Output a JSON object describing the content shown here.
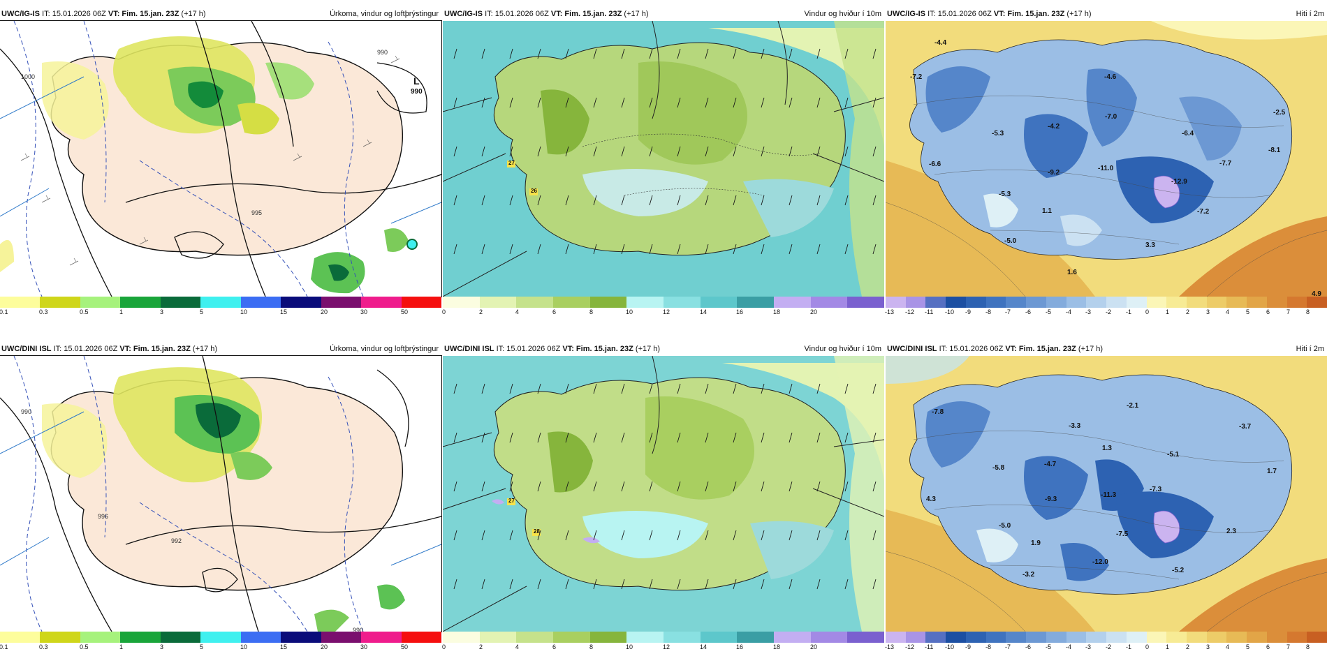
{
  "rows": [
    {
      "model": "UWC/IG-IS",
      "panels": [
        {
          "kind": "precip",
          "title": "Úrkoma, vindur og loftþrýstingur",
          "labels": [
            {
              "t": "L"
            },
            {
              "t": "990"
            },
            {
              "t": "1000"
            },
            {
              "t": "990"
            },
            {
              "t": "995"
            }
          ]
        },
        {
          "kind": "wind",
          "title": "Vindur og hviður í 10m",
          "labels": [
            {
              "t": "27"
            },
            {
              "t": "26"
            }
          ]
        },
        {
          "kind": "temp",
          "title": "Hiti í 2m",
          "labels": [
            {
              "t": "-4.4"
            },
            {
              "t": "-7.2"
            },
            {
              "t": "-4.6"
            },
            {
              "t": "-7.0"
            },
            {
              "t": "-4.2"
            },
            {
              "t": "-5.3"
            },
            {
              "t": "-6.4"
            },
            {
              "t": "-2.5"
            },
            {
              "t": "-8.1"
            },
            {
              "t": "-6.6"
            },
            {
              "t": "-9.2"
            },
            {
              "t": "-11.0"
            },
            {
              "t": "-12.9"
            },
            {
              "t": "-7.7"
            },
            {
              "t": "-5.3"
            },
            {
              "t": "1.1"
            },
            {
              "t": "-7.2"
            },
            {
              "t": "-5.0"
            },
            {
              "t": "3.3"
            },
            {
              "t": "1.6"
            },
            {
              "t": "4.9"
            }
          ]
        }
      ]
    },
    {
      "model": "UWC/DINI ISL",
      "panels": [
        {
          "kind": "precip",
          "title": "Úrkoma, vindur og loftþrýstingur",
          "labels": [
            {
              "t": "990"
            },
            {
              "t": "996"
            },
            {
              "t": "992"
            },
            {
              "t": "990"
            }
          ]
        },
        {
          "kind": "wind",
          "title": "Vindur og hviður í 10m",
          "labels": [
            {
              "t": "27"
            },
            {
              "t": "28"
            }
          ]
        },
        {
          "kind": "temp",
          "title": "Hiti í 2m",
          "labels": [
            {
              "t": "-7.8"
            },
            {
              "t": "-3.3"
            },
            {
              "t": "-2.1"
            },
            {
              "t": "-5.8"
            },
            {
              "t": "-4.7"
            },
            {
              "t": "1.3"
            },
            {
              "t": "-5.1"
            },
            {
              "t": "-3.7"
            },
            {
              "t": "1.7"
            },
            {
              "t": "4.3"
            },
            {
              "t": "-9.3"
            },
            {
              "t": "-11.3"
            },
            {
              "t": "-7.3"
            },
            {
              "t": "-5.0"
            },
            {
              "t": "-7.5"
            },
            {
              "t": "2.3"
            },
            {
              "t": "1.9"
            },
            {
              "t": "-12.0"
            },
            {
              "t": "-3.2"
            },
            {
              "t": "-5.2"
            }
          ]
        }
      ]
    }
  ],
  "it_label": "IT: 15.01.2026 06Z",
  "vt_label": "VT: Fim. 15.jan. 23Z",
  "lead": "(+17 h)",
  "scales": {
    "precip": {
      "ticks": [
        "0.1",
        "0.3",
        "0.5",
        "1",
        "3",
        "5",
        "10",
        "15",
        "20",
        "30",
        "50"
      ],
      "colors": [
        "#fdfd9c",
        "#cfd61a",
        "#a6f27c",
        "#19a53a",
        "#0a6b3a",
        "#3ff0ef",
        "#3b6df3",
        "#0a0c7a",
        "#7a0f6e",
        "#ef1c8c",
        "#f50f0f"
      ]
    },
    "wind": {
      "ticks": [
        "0",
        "2",
        "4",
        "6",
        "8",
        "10",
        "12",
        "14",
        "16",
        "18",
        "20"
      ],
      "colors": [
        "#fbfde0",
        "#e3f3b3",
        "#c5e28b",
        "#a9cf60",
        "#86b53c",
        "#b8f4f2",
        "#89e0e1",
        "#5dc7cb",
        "#3a9ea4",
        "#c3aef2",
        "#a389e5",
        "#7a60cf"
      ]
    },
    "temp": {
      "ticks": [
        "-13",
        "-12",
        "-11",
        "-10",
        "-9",
        "-8",
        "-7",
        "-6",
        "-5",
        "-4",
        "-3",
        "-2",
        "-1",
        "0",
        "1",
        "2",
        "3",
        "4",
        "5",
        "6",
        "7",
        "8"
      ],
      "colors": [
        "#cbb4f0",
        "#a994e6",
        "#5670c2",
        "#1c4fa2",
        "#2d62b2",
        "#3f73bf",
        "#5586ca",
        "#6c98d3",
        "#83abdc",
        "#9bbee5",
        "#b3d0ec",
        "#cbe1f2",
        "#def0f6",
        "#fbf6b7",
        "#f7eb95",
        "#f2dc7c",
        "#edcc68",
        "#e7ba56",
        "#e2a547",
        "#db8e3a",
        "#d5782f",
        "#c85f22"
      ]
    }
  }
}
